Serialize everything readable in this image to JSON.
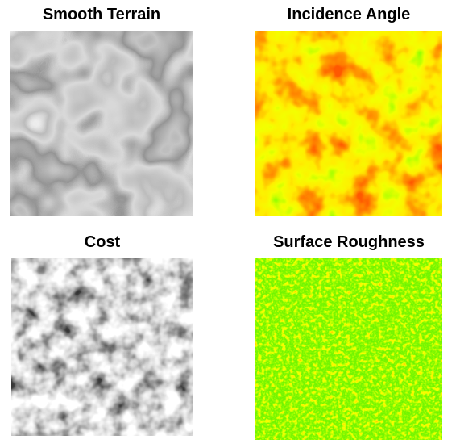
{
  "panels": [
    {
      "title": "Smooth Terrain"
    },
    {
      "title": "Incidence Angle"
    },
    {
      "title": "Cost"
    },
    {
      "title": "Surface Roughness"
    }
  ]
}
